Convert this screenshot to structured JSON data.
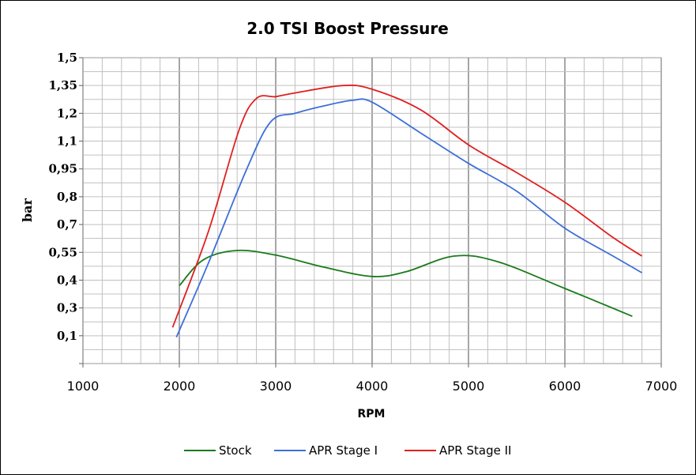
{
  "chart_data": {
    "type": "line",
    "title": "2.0 TSI Boost Pressure",
    "xlabel": "RPM",
    "ylabel": "bar",
    "xlim": [
      1000,
      7000
    ],
    "x_ticks": [
      "1000",
      "2000",
      "3000",
      "4000",
      "5000",
      "6000",
      "7000"
    ],
    "y_tick_labels": [
      "0,1",
      "0,3",
      "0,4",
      "0,55",
      "0,7",
      "0,8",
      "0,95",
      "1,1",
      "1,2",
      "1,35",
      "1,5"
    ],
    "grid": true,
    "legend_position": "bottom",
    "colors": {
      "Stock": "#1a7a1a",
      "APR Stage I": "#3e6fd8",
      "APR Stage II": "#e02020"
    },
    "series": [
      {
        "name": "Stock",
        "x": [
          2000,
          2250,
          2600,
          3000,
          3500,
          4000,
          4350,
          4850,
          5300,
          6000,
          6700
        ],
        "y": [
          0.38,
          0.51,
          0.56,
          0.535,
          0.47,
          0.42,
          0.445,
          0.53,
          0.5,
          0.37,
          0.24
        ]
      },
      {
        "name": "APR Stage I",
        "x": [
          1970,
          2300,
          2700,
          2950,
          3200,
          3500,
          3800,
          4000,
          4500,
          5000,
          5500,
          6000,
          6500,
          6800
        ],
        "y": [
          0.09,
          0.49,
          0.95,
          1.17,
          1.2,
          1.24,
          1.27,
          1.26,
          1.13,
          0.98,
          0.83,
          0.68,
          0.53,
          0.44
        ]
      },
      {
        "name": "APR Stage II",
        "x": [
          1930,
          2300,
          2620,
          2800,
          3000,
          3200,
          3700,
          4000,
          4500,
          5000,
          5500,
          6000,
          6500,
          6800
        ],
        "y": [
          0.16,
          0.66,
          1.14,
          1.28,
          1.29,
          1.31,
          1.35,
          1.33,
          1.22,
          1.08,
          0.93,
          0.78,
          0.63,
          0.53
        ]
      }
    ]
  }
}
